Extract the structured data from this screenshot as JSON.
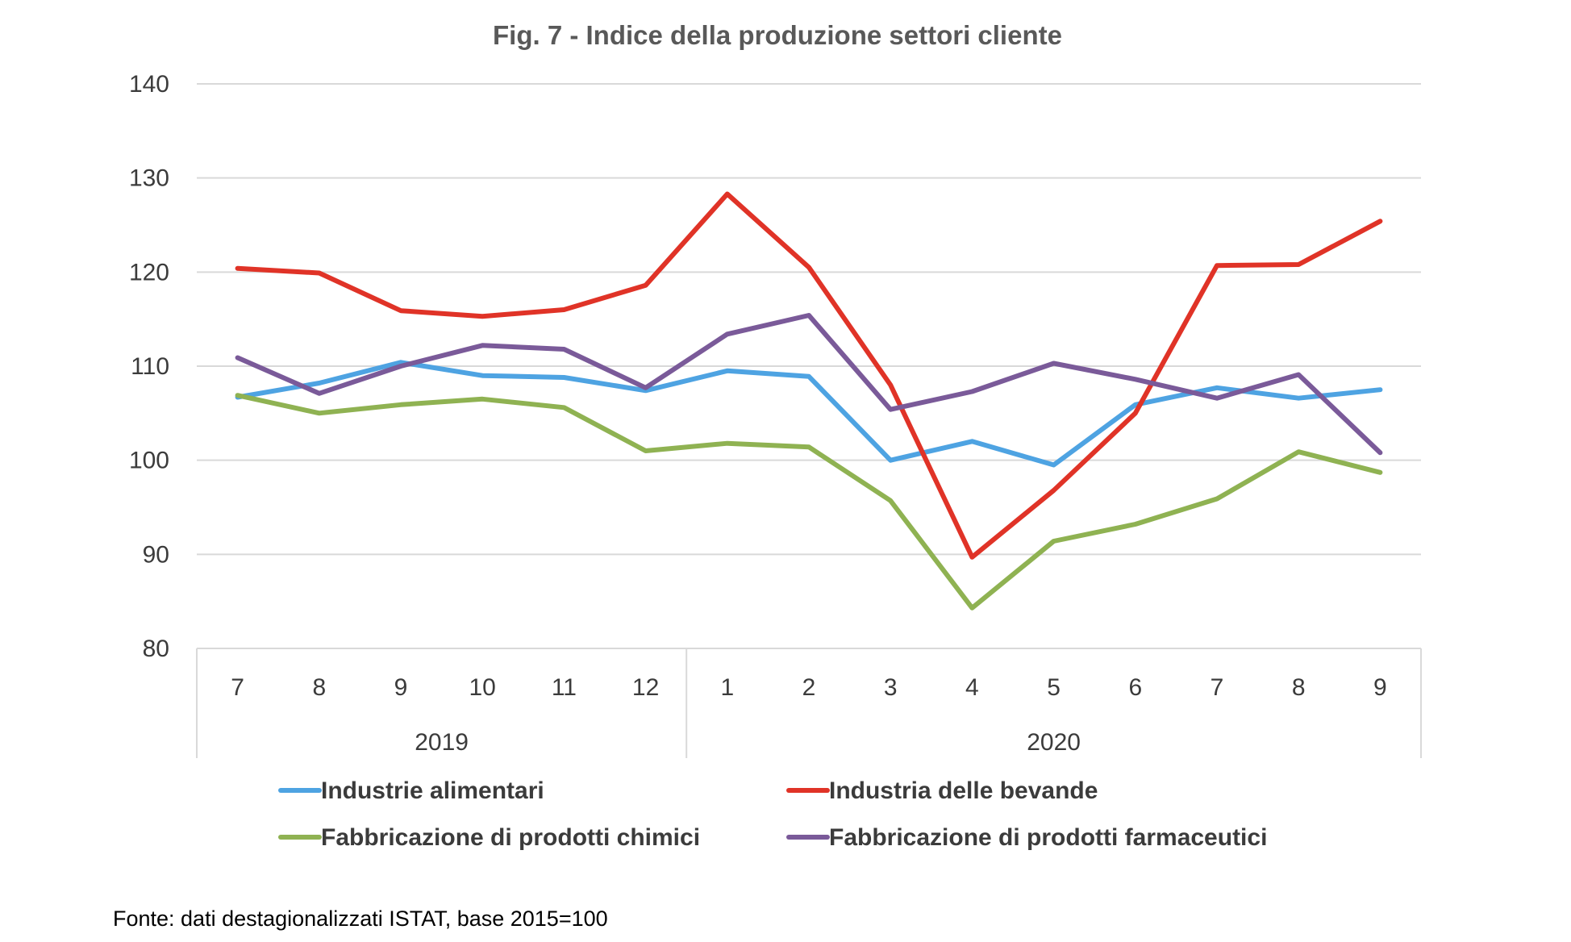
{
  "chart_data": {
    "type": "line",
    "title": "Fig. 7 - Indice della produzione settori cliente",
    "source_note": "Fonte: dati destagionalizzati ISTAT, base 2015=100",
    "x_months": [
      "7",
      "8",
      "9",
      "10",
      "11",
      "12",
      "1",
      "2",
      "3",
      "4",
      "5",
      "6",
      "7",
      "8",
      "9"
    ],
    "x_years": [
      {
        "label": "2019",
        "span": 6
      },
      {
        "label": "2020",
        "span": 9
      }
    ],
    "y_ticks": [
      "80",
      "90",
      "100",
      "110",
      "120",
      "130",
      "140"
    ],
    "ylim": [
      80,
      140
    ],
    "grid": true,
    "legend_position": "bottom",
    "series": [
      {
        "name": "Industrie alimentari",
        "color": "#4ea3e2",
        "values": [
          106.7,
          108.2,
          110.4,
          109.0,
          108.8,
          107.4,
          109.5,
          108.9,
          100.0,
          102.0,
          99.5,
          105.9,
          107.7,
          106.6,
          107.5
        ]
      },
      {
        "name": "Industria delle bevande",
        "color": "#e03327",
        "values": [
          120.4,
          119.9,
          115.9,
          115.3,
          116.0,
          118.6,
          128.3,
          120.5,
          108.0,
          89.7,
          96.8,
          105.0,
          120.7,
          120.8,
          125.4
        ]
      },
      {
        "name": "Fabbricazione di prodotti chimici",
        "color": "#8fb252",
        "values": [
          106.9,
          105.0,
          105.9,
          106.5,
          105.6,
          101.0,
          101.8,
          101.4,
          95.7,
          84.3,
          91.4,
          93.2,
          95.9,
          100.9,
          98.7
        ]
      },
      {
        "name": "Fabbricazione di prodotti farmaceutici",
        "color": "#7a5a99",
        "values": [
          110.9,
          107.1,
          110.0,
          112.2,
          111.8,
          107.7,
          113.4,
          115.4,
          105.4,
          107.3,
          110.3,
          108.6,
          106.6,
          109.1,
          100.8
        ]
      }
    ]
  }
}
